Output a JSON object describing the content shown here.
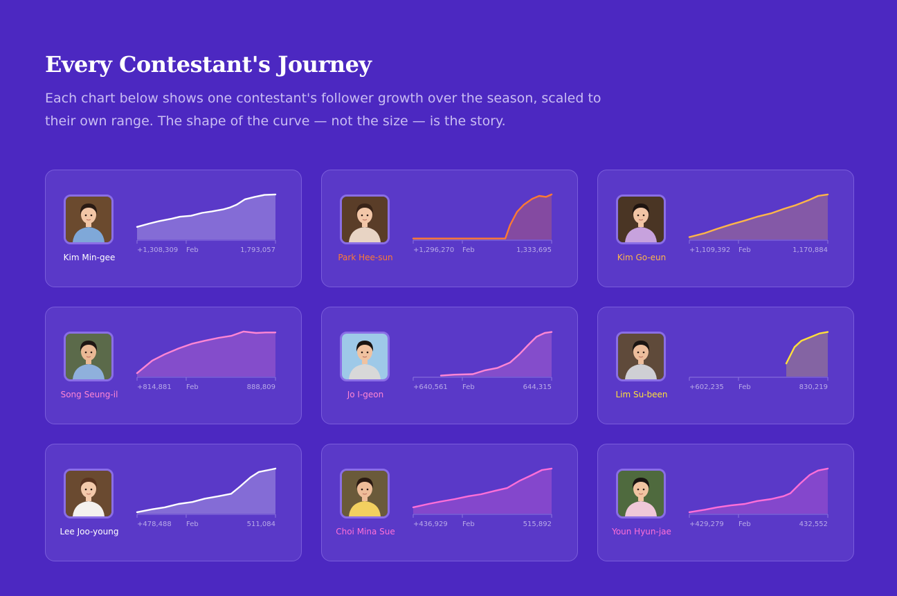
{
  "header": {
    "title": "Every Contestant's Journey",
    "subtitle": "Each chart below shows one contestant's follower growth over the season, scaled to their own range. The shape of the curve — not the size — is the story."
  },
  "chart_data": [
    {
      "type": "area",
      "name": "Kim Min-gee",
      "color": "#ffffff",
      "start_label": "+1,308,309",
      "end_label": "1,793,057",
      "mid_tick": "Feb",
      "y_start": 1308309,
      "y_end": 1793057,
      "x": [
        0,
        0.09,
        0.16,
        0.25,
        0.31,
        0.39,
        0.47,
        0.54,
        0.62,
        0.67,
        0.72,
        0.78,
        0.85,
        0.92,
        1
      ],
      "y": [
        0.26,
        0.33,
        0.38,
        0.43,
        0.47,
        0.49,
        0.55,
        0.58,
        0.62,
        0.66,
        0.72,
        0.83,
        0.88,
        0.92,
        0.93
      ]
    },
    {
      "type": "area",
      "name": "Park Hee-sun",
      "color": "#ff7a32",
      "start_label": "+1,296,270",
      "end_label": "1,333,695",
      "mid_tick": "Feb",
      "y_start": 1296270,
      "y_end": 1333695,
      "x": [
        0,
        0.665,
        0.7,
        0.75,
        0.8,
        0.86,
        0.91,
        0.96,
        1
      ],
      "y": [
        0.02,
        0.02,
        0.3,
        0.57,
        0.72,
        0.84,
        0.9,
        0.88,
        0.93
      ]
    },
    {
      "type": "area",
      "name": "Kim Go-eun",
      "color": "#ffb648",
      "start_label": "+1,109,392",
      "end_label": "1,170,884",
      "mid_tick": "Feb",
      "y_start": 1109392,
      "y_end": 1170884,
      "x": [
        0,
        0.11,
        0.2,
        0.3,
        0.4,
        0.49,
        0.59,
        0.68,
        0.77,
        0.86,
        0.93,
        1
      ],
      "y": [
        0.05,
        0.13,
        0.22,
        0.31,
        0.39,
        0.47,
        0.54,
        0.63,
        0.71,
        0.81,
        0.9,
        0.93
      ]
    },
    {
      "type": "area",
      "name": "Song Seung-il",
      "color": "#ff86d4",
      "start_label": "+814,881",
      "end_label": "888,809",
      "mid_tick": "Feb",
      "y_start": 814881,
      "y_end": 888809,
      "x": [
        0,
        0.11,
        0.2,
        0.3,
        0.4,
        0.49,
        0.59,
        0.68,
        0.77,
        0.86,
        0.93,
        1
      ],
      "y": [
        0.07,
        0.33,
        0.46,
        0.58,
        0.68,
        0.74,
        0.8,
        0.84,
        0.93,
        0.9,
        0.91,
        0.91
      ]
    },
    {
      "type": "area",
      "name": "Jo I-geon",
      "color": "#ff86d4",
      "start_label": "+640,561",
      "end_label": "644,315",
      "mid_tick": "Feb",
      "y_start": 640561,
      "y_end": 644315,
      "x": [
        0.2,
        0.3,
        0.43,
        0.52,
        0.61,
        0.7,
        0.77,
        0.83,
        0.89,
        0.95,
        1
      ],
      "y": [
        0.02,
        0.04,
        0.05,
        0.13,
        0.18,
        0.29,
        0.47,
        0.65,
        0.82,
        0.9,
        0.92
      ]
    },
    {
      "type": "area",
      "name": "Lim Su-been",
      "color": "#ffe03a",
      "start_label": "+602,235",
      "end_label": "830,219",
      "mid_tick": "Feb",
      "y_start": 602235,
      "y_end": 830219,
      "x": [
        0.7,
        0.76,
        0.81,
        0.88,
        0.94,
        1
      ],
      "y": [
        0.27,
        0.61,
        0.74,
        0.82,
        0.89,
        0.92
      ]
    },
    {
      "type": "area",
      "name": "Lee Joo-young",
      "color": "#ffffff",
      "start_label": "+478,488",
      "end_label": "511,084",
      "mid_tick": "Feb",
      "y_start": 478488,
      "y_end": 511084,
      "x": [
        0,
        0.11,
        0.2,
        0.3,
        0.4,
        0.49,
        0.59,
        0.68,
        0.74,
        0.82,
        0.88,
        0.95,
        1
      ],
      "y": [
        0.03,
        0.09,
        0.13,
        0.2,
        0.24,
        0.31,
        0.36,
        0.41,
        0.55,
        0.75,
        0.86,
        0.9,
        0.93
      ]
    },
    {
      "type": "area",
      "name": "Choi Mina Sue",
      "color": "#ff6fd8",
      "start_label": "+436,929",
      "end_label": "515,892",
      "mid_tick": "Feb",
      "y_start": 436929,
      "y_end": 515892,
      "x": [
        0,
        0.11,
        0.2,
        0.3,
        0.4,
        0.49,
        0.59,
        0.68,
        0.77,
        0.86,
        0.93,
        1
      ],
      "y": [
        0.13,
        0.2,
        0.25,
        0.3,
        0.36,
        0.4,
        0.47,
        0.53,
        0.68,
        0.8,
        0.9,
        0.93
      ]
    },
    {
      "type": "area",
      "name": "Youn Hyun-jae",
      "color": "#ff6fd8",
      "start_label": "+429,279",
      "end_label": "432,552",
      "mid_tick": "Feb",
      "y_start": 429279,
      "y_end": 432552,
      "x": [
        0,
        0.11,
        0.2,
        0.3,
        0.4,
        0.49,
        0.59,
        0.68,
        0.73,
        0.8,
        0.87,
        0.93,
        1
      ],
      "y": [
        0.03,
        0.08,
        0.13,
        0.17,
        0.2,
        0.26,
        0.3,
        0.36,
        0.42,
        0.62,
        0.8,
        0.89,
        0.93
      ]
    }
  ],
  "avatars": [
    {
      "skin": "#f2c6a6",
      "hair": "#2a1b14",
      "shirt": "#7fa8d8",
      "bg": "#6b4a2e"
    },
    {
      "skin": "#f3c7a8",
      "hair": "#3a2418",
      "shirt": "#e8d4c4",
      "bg": "#5a3d28"
    },
    {
      "skin": "#f2c5a5",
      "hair": "#1e1410",
      "shirt": "#c7a2dd",
      "bg": "#4a3524"
    },
    {
      "skin": "#e9b995",
      "hair": "#1d1612",
      "shirt": "#8fb0dc",
      "bg": "#5b6a4a"
    },
    {
      "skin": "#f0c2a0",
      "hair": "#1a1412",
      "shirt": "#d8d8d8",
      "bg": "#9ec9e8"
    },
    {
      "skin": "#ecbd9c",
      "hair": "#1a1412",
      "shirt": "#cfcfd4",
      "bg": "#5f4a3a"
    },
    {
      "skin": "#f3c9aa",
      "hair": "#5a3420",
      "shirt": "#f4f1ee",
      "bg": "#6a4a30"
    },
    {
      "skin": "#eebd99",
      "hair": "#2a1a12",
      "shirt": "#f2d060",
      "bg": "#6a5a3a"
    },
    {
      "skin": "#f1c4a2",
      "hair": "#1a1412",
      "shirt": "#f0c8d8",
      "bg": "#4f6a3e"
    }
  ]
}
